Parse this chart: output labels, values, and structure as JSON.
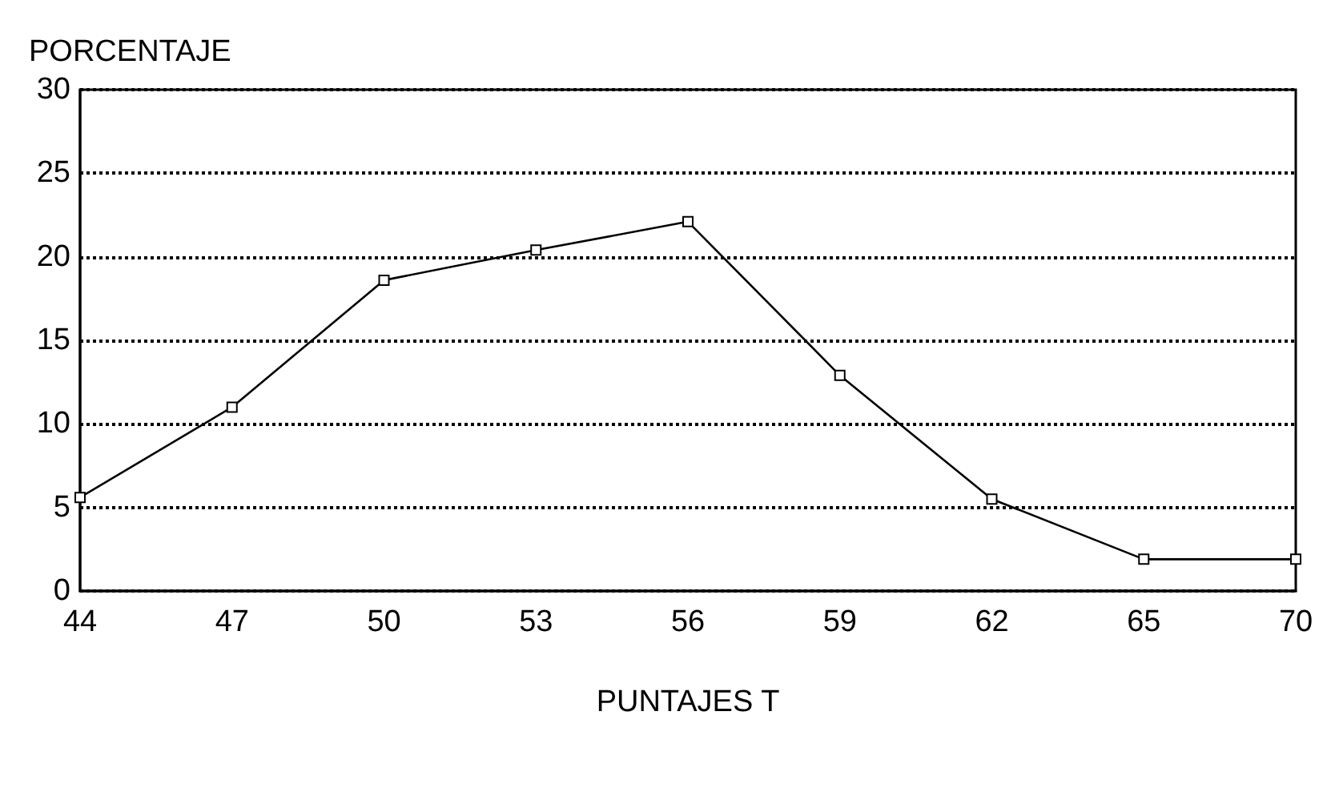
{
  "chart_data": {
    "type": "line",
    "xlabel": "PUNTAJES T",
    "ylabel": "PORCENTAJE",
    "categories": [
      "44",
      "47",
      "50",
      "53",
      "56",
      "59",
      "62",
      "65",
      "70"
    ],
    "series": [
      {
        "color": "#000000",
        "values": [
          5.6,
          11,
          18.6,
          20.4,
          22.1,
          12.9,
          5.5,
          1.9,
          1.9
        ]
      }
    ],
    "ylim": [
      0,
      30
    ],
    "yticks": [
      0,
      5,
      10,
      15,
      20,
      25,
      30
    ],
    "grid": "y",
    "marker": "square",
    "line_style": "solid"
  }
}
